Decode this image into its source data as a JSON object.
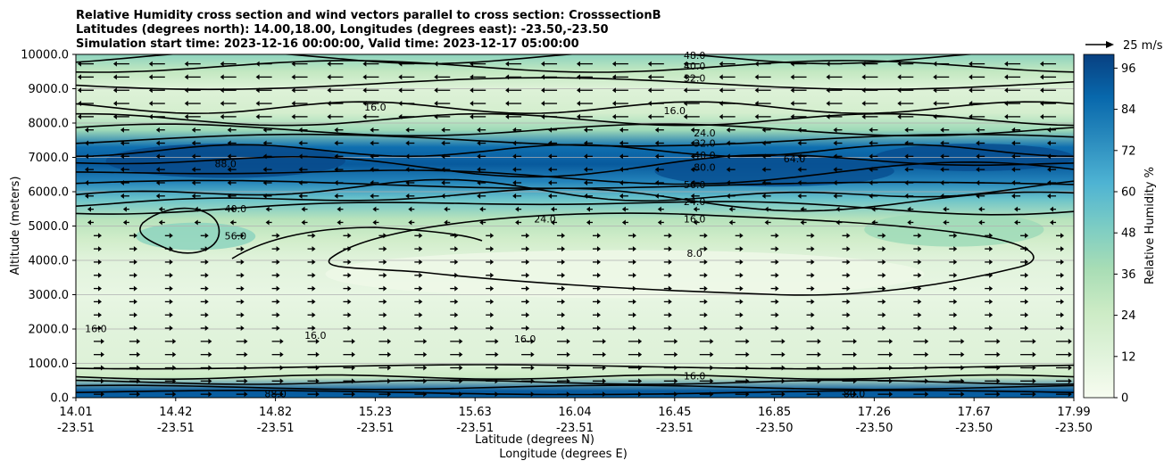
{
  "chart_data": {
    "type": "heatmap",
    "title_lines": [
      "Relative Humidity cross section and wind vectors parallel to cross section: CrosssectionB",
      "Latitudes (degrees north): 14.00,18.00, Longitudes (degrees east): -23.50,-23.50",
      "Simulation start time: 2023-12-16 00:00:00, Valid time: 2023-12-17 05:00:00"
    ],
    "xlabel_lines": [
      "Latitude (degrees N)",
      "Longitude (degrees E)"
    ],
    "ylabel": "Altitude (meters)",
    "x_ticks": [
      {
        "lat": "14.01",
        "lon": "-23.51"
      },
      {
        "lat": "14.42",
        "lon": "-23.51"
      },
      {
        "lat": "14.82",
        "lon": "-23.51"
      },
      {
        "lat": "15.23",
        "lon": "-23.51"
      },
      {
        "lat": "15.63",
        "lon": "-23.51"
      },
      {
        "lat": "16.04",
        "lon": "-23.51"
      },
      {
        "lat": "16.45",
        "lon": "-23.51"
      },
      {
        "lat": "16.85",
        "lon": "-23.50"
      },
      {
        "lat": "17.26",
        "lon": "-23.50"
      },
      {
        "lat": "17.67",
        "lon": "-23.50"
      },
      {
        "lat": "17.99",
        "lon": "-23.50"
      }
    ],
    "y_ticks": [
      "0.0",
      "1000.0",
      "2000.0",
      "3000.0",
      "4000.0",
      "5000.0",
      "6000.0",
      "7000.0",
      "8000.0",
      "9000.0",
      "10000.0"
    ],
    "ylim": [
      0,
      10000
    ],
    "grid": "horizontal",
    "colorbar": {
      "label": "Relative Humidity %",
      "ticks": [
        "0",
        "12",
        "24",
        "36",
        "48",
        "60",
        "72",
        "84",
        "96"
      ],
      "range": [
        0,
        100
      ],
      "colors": [
        "#f7fcf0",
        "#e0f3db",
        "#ccebc5",
        "#a8ddb5",
        "#7bccc4",
        "#4eb3d3",
        "#2b8cbe",
        "#0868ac",
        "#084081"
      ]
    },
    "quiver_key": {
      "label": "25 m/s"
    },
    "rh_layers": [
      {
        "altitude": 0,
        "rh": 90
      },
      {
        "altitude": 200,
        "rh": 92
      },
      {
        "altitude": 600,
        "rh": 25
      },
      {
        "altitude": 1000,
        "rh": 14
      },
      {
        "altitude": 2000,
        "rh": 12
      },
      {
        "altitude": 3000,
        "rh": 8
      },
      {
        "altitude": 4000,
        "rh": 12
      },
      {
        "altitude": 4600,
        "rh": 22
      },
      {
        "altitude": 5200,
        "rh": 32
      },
      {
        "altitude": 5800,
        "rh": 55
      },
      {
        "altitude": 6300,
        "rh": 78
      },
      {
        "altitude": 6800,
        "rh": 92
      },
      {
        "altitude": 7300,
        "rh": 85
      },
      {
        "altitude": 7800,
        "rh": 40
      },
      {
        "altitude": 8300,
        "rh": 20
      },
      {
        "altitude": 9000,
        "rh": 14
      },
      {
        "altitude": 9500,
        "rh": 28
      },
      {
        "altitude": 10000,
        "rh": 45
      }
    ],
    "contour_labels": [
      {
        "text": "48.0",
        "x": 0.62,
        "alt": 9960
      },
      {
        "text": "40.0",
        "x": 0.62,
        "alt": 9650
      },
      {
        "text": "32.0",
        "x": 0.62,
        "alt": 9300
      },
      {
        "text": "16.0",
        "x": 0.6,
        "alt": 8350
      },
      {
        "text": "16.0",
        "x": 0.3,
        "alt": 8450
      },
      {
        "text": "24.0",
        "x": 0.63,
        "alt": 7700
      },
      {
        "text": "32.0",
        "x": 0.63,
        "alt": 7400
      },
      {
        "text": "40.0",
        "x": 0.63,
        "alt": 7050
      },
      {
        "text": "80.0",
        "x": 0.63,
        "alt": 6700
      },
      {
        "text": "88.0",
        "x": 0.15,
        "alt": 6800
      },
      {
        "text": "64.0",
        "x": 0.72,
        "alt": 6950
      },
      {
        "text": "56.0",
        "x": 0.62,
        "alt": 6200
      },
      {
        "text": "24.0",
        "x": 0.62,
        "alt": 5700
      },
      {
        "text": "16.0",
        "x": 0.62,
        "alt": 5200
      },
      {
        "text": "24.0",
        "x": 0.47,
        "alt": 5200
      },
      {
        "text": "40.0",
        "x": 0.16,
        "alt": 5500
      },
      {
        "text": "56.0",
        "x": 0.16,
        "alt": 4700
      },
      {
        "text": "8.0",
        "x": 0.62,
        "alt": 4200
      },
      {
        "text": "16.0",
        "x": 0.02,
        "alt": 2000
      },
      {
        "text": "16.0",
        "x": 0.24,
        "alt": 1800
      },
      {
        "text": "16.0",
        "x": 0.45,
        "alt": 1700
      },
      {
        "text": "16.0",
        "x": 0.62,
        "alt": 620
      },
      {
        "text": "80.0",
        "x": 0.78,
        "alt": 100
      },
      {
        "text": "88.0",
        "x": 0.2,
        "alt": 100
      }
    ]
  }
}
